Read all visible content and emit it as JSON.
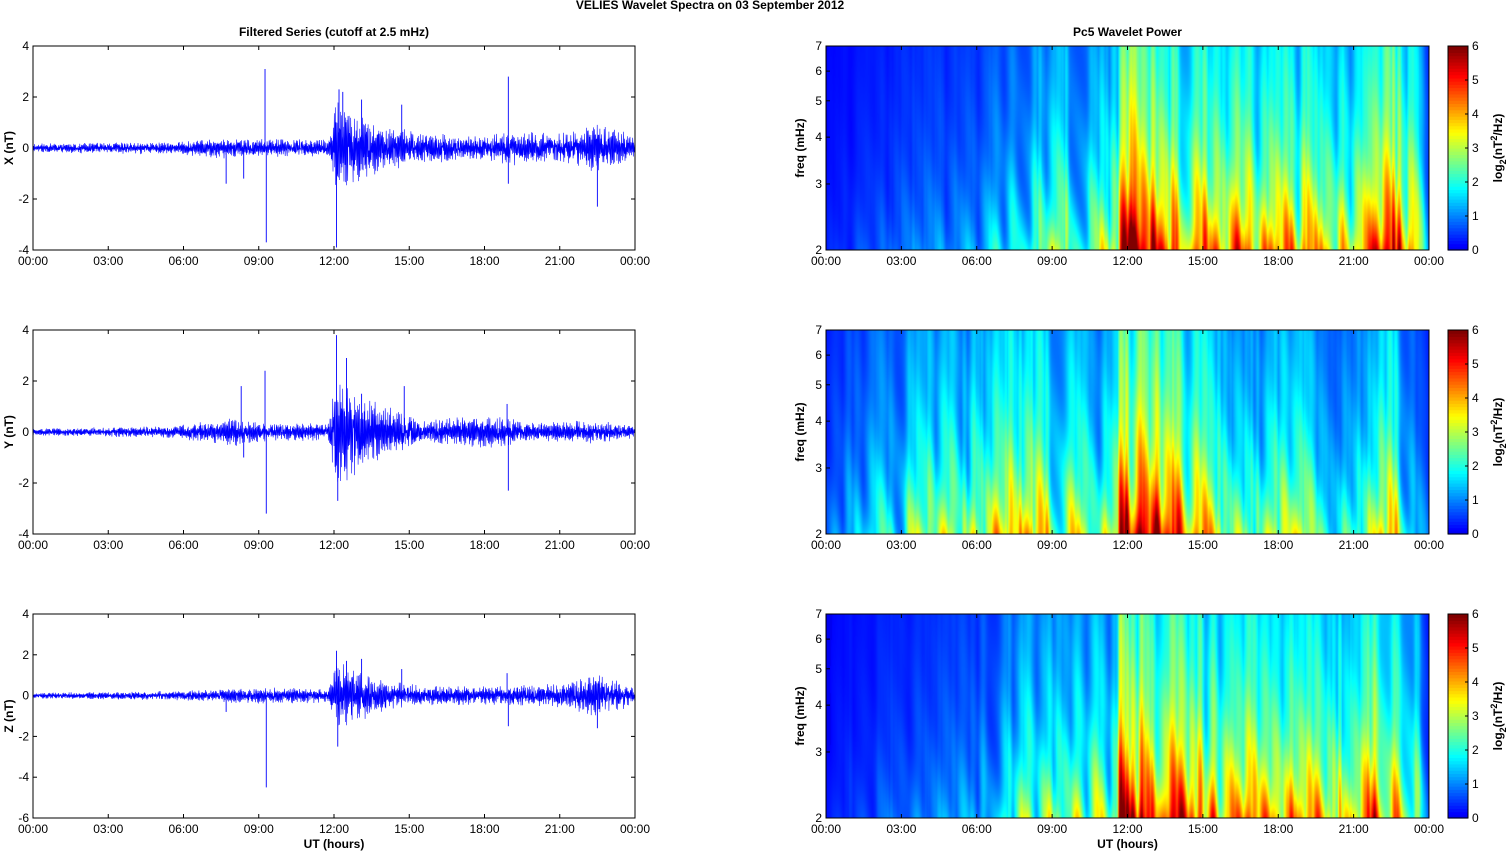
{
  "figure_title": "VELIES Wavelet Spectra on 03 September 2012",
  "chart_data": [
    {
      "type": "line",
      "panel": "left-top",
      "title": "Filtered Series (cutoff at 2.5 mHz)",
      "ylabel": "X (nT)",
      "xlabel": "",
      "xlim": [
        0,
        24
      ],
      "ylim": [
        -4,
        4
      ],
      "xticks": [
        "00:00",
        "03:00",
        "06:00",
        "09:00",
        "12:00",
        "15:00",
        "18:00",
        "21:00",
        "00:00"
      ],
      "yticks": [
        "-4",
        "-2",
        "0",
        "2",
        "4"
      ],
      "color": "#0000ff",
      "envelope": [
        [
          0,
          0.15
        ],
        [
          5.8,
          0.22
        ],
        [
          7.6,
          0.35
        ],
        [
          9.3,
          0.3
        ],
        [
          11.8,
          0.3
        ],
        [
          12.1,
          1.6
        ],
        [
          12.6,
          1.3
        ],
        [
          14.0,
          0.8
        ],
        [
          15.5,
          0.5
        ],
        [
          18.0,
          0.4
        ],
        [
          19.0,
          0.6
        ],
        [
          21.0,
          0.5
        ],
        [
          22.4,
          0.8
        ],
        [
          23.5,
          0.6
        ],
        [
          24,
          0.4
        ]
      ],
      "spikes": [
        [
          7.7,
          -1.4
        ],
        [
          8.4,
          -1.2
        ],
        [
          9.25,
          3.1
        ],
        [
          9.3,
          -3.7
        ],
        [
          12.1,
          -3.9
        ],
        [
          12.2,
          2.3
        ],
        [
          12.35,
          2.2
        ],
        [
          13.1,
          1.9
        ],
        [
          14.7,
          1.7
        ],
        [
          18.95,
          2.8
        ],
        [
          18.95,
          -1.4
        ],
        [
          22.5,
          -2.3
        ]
      ]
    },
    {
      "type": "line",
      "panel": "left-middle",
      "title": "",
      "ylabel": "Y (nT)",
      "xlabel": "",
      "xlim": [
        0,
        24
      ],
      "ylim": [
        -4,
        4
      ],
      "xticks": [
        "00:00",
        "03:00",
        "06:00",
        "09:00",
        "12:00",
        "15:00",
        "18:00",
        "21:00",
        "00:00"
      ],
      "yticks": [
        "-4",
        "-2",
        "0",
        "2",
        "4"
      ],
      "color": "#0000ff",
      "envelope": [
        [
          0,
          0.12
        ],
        [
          5.5,
          0.2
        ],
        [
          8.0,
          0.5
        ],
        [
          9.3,
          0.3
        ],
        [
          11.8,
          0.3
        ],
        [
          12.1,
          2.0
        ],
        [
          12.6,
          1.6
        ],
        [
          14.0,
          0.9
        ],
        [
          15.5,
          0.4
        ],
        [
          18.8,
          0.6
        ],
        [
          19.5,
          0.3
        ],
        [
          22.5,
          0.4
        ],
        [
          24,
          0.2
        ]
      ],
      "spikes": [
        [
          8.3,
          1.8
        ],
        [
          8.4,
          -1.0
        ],
        [
          9.25,
          2.4
        ],
        [
          9.3,
          -3.2
        ],
        [
          12.1,
          3.8
        ],
        [
          12.15,
          -2.7
        ],
        [
          12.5,
          2.9
        ],
        [
          13.1,
          1.5
        ],
        [
          14.8,
          1.8
        ],
        [
          18.9,
          1.1
        ],
        [
          18.95,
          -2.3
        ]
      ]
    },
    {
      "type": "line",
      "panel": "left-bottom",
      "title": "",
      "ylabel": "Z (nT)",
      "xlabel": "UT (hours)",
      "xlim": [
        0,
        24
      ],
      "ylim": [
        -6,
        4
      ],
      "xticks": [
        "00:00",
        "03:00",
        "06:00",
        "09:00",
        "12:00",
        "15:00",
        "18:00",
        "21:00",
        "00:00"
      ],
      "yticks": [
        "-6",
        "-4",
        "-2",
        "0",
        "2",
        "4"
      ],
      "color": "#0000ff",
      "envelope": [
        [
          0,
          0.12
        ],
        [
          6,
          0.2
        ],
        [
          9,
          0.35
        ],
        [
          11.8,
          0.3
        ],
        [
          12.1,
          1.6
        ],
        [
          12.6,
          1.2
        ],
        [
          14.0,
          0.7
        ],
        [
          15.5,
          0.4
        ],
        [
          18.5,
          0.4
        ],
        [
          21,
          0.5
        ],
        [
          22.4,
          0.9
        ],
        [
          23.5,
          0.6
        ],
        [
          24,
          0.3
        ]
      ],
      "spikes": [
        [
          7.7,
          -0.8
        ],
        [
          9.3,
          -4.5
        ],
        [
          12.1,
          2.2
        ],
        [
          12.15,
          -2.5
        ],
        [
          12.5,
          1.7
        ],
        [
          13.1,
          1.8
        ],
        [
          14.7,
          1.3
        ],
        [
          18.9,
          1.1
        ],
        [
          18.95,
          -1.5
        ],
        [
          22.5,
          -1.6
        ]
      ]
    },
    {
      "type": "heatmap",
      "panel": "right-top",
      "title": "Pc5 Wavelet Power",
      "ylabel": "freq (mHz)",
      "xlabel": "",
      "xlim": [
        0,
        24
      ],
      "ylim": [
        2,
        7
      ],
      "yscale": "log",
      "xticks": [
        "00:00",
        "03:00",
        "06:00",
        "09:00",
        "12:00",
        "15:00",
        "18:00",
        "21:00",
        "00:00"
      ],
      "yticks": [
        "2",
        "3",
        "4",
        "5",
        "6",
        "7"
      ],
      "colorbar_label": "log2(nT^2/Hz)",
      "colorbar_ticks": [
        "0",
        "1",
        "2",
        "3",
        "4",
        "5",
        "6"
      ],
      "colorscale": "jet",
      "clim": [
        0,
        6
      ],
      "activity": [
        [
          0,
          0.3
        ],
        [
          2.5,
          0.8
        ],
        [
          6.0,
          1.3
        ],
        [
          8.0,
          2.8
        ],
        [
          11.6,
          3.2
        ],
        [
          11.7,
          6.5
        ],
        [
          14.3,
          5.0
        ],
        [
          15.5,
          4.5
        ],
        [
          17.5,
          4.5
        ],
        [
          19.5,
          4.3
        ],
        [
          21.0,
          3.5
        ],
        [
          22.2,
          5.8
        ],
        [
          23.5,
          4.0
        ],
        [
          24,
          1.0
        ]
      ]
    },
    {
      "type": "heatmap",
      "panel": "right-middle",
      "title": "",
      "ylabel": "freq (mHz)",
      "xlabel": "",
      "xlim": [
        0,
        24
      ],
      "ylim": [
        2,
        7
      ],
      "yscale": "log",
      "xticks": [
        "00:00",
        "03:00",
        "06:00",
        "09:00",
        "12:00",
        "15:00",
        "18:00",
        "21:00",
        "00:00"
      ],
      "yticks": [
        "2",
        "3",
        "4",
        "5",
        "6",
        "7"
      ],
      "colorbar_label": "log2(nT^2/Hz)",
      "colorbar_ticks": [
        "0",
        "1",
        "2",
        "3",
        "4",
        "5",
        "6"
      ],
      "colorscale": "jet",
      "clim": [
        0,
        6
      ],
      "activity": [
        [
          0,
          1.0
        ],
        [
          2.2,
          2.2
        ],
        [
          4.2,
          3.0
        ],
        [
          6.5,
          3.4
        ],
        [
          8.1,
          4.4
        ],
        [
          10.5,
          3.0
        ],
        [
          11.6,
          3.2
        ],
        [
          11.7,
          6.5
        ],
        [
          14.5,
          4.8
        ],
        [
          16.0,
          2.8
        ],
        [
          17.5,
          2.6
        ],
        [
          18.5,
          4.0
        ],
        [
          20.0,
          1.8
        ],
        [
          21.5,
          2.5
        ],
        [
          22.5,
          4.4
        ],
        [
          23.5,
          1.5
        ],
        [
          24,
          0.8
        ]
      ]
    },
    {
      "type": "heatmap",
      "panel": "right-bottom",
      "title": "",
      "ylabel": "freq (mHz)",
      "xlabel": "UT (hours)",
      "xlim": [
        0,
        24
      ],
      "ylim": [
        2,
        7
      ],
      "yscale": "log",
      "xticks": [
        "00:00",
        "03:00",
        "06:00",
        "09:00",
        "12:00",
        "15:00",
        "18:00",
        "21:00",
        "00:00"
      ],
      "yticks": [
        "2",
        "3",
        "4",
        "5",
        "6",
        "7"
      ],
      "colorbar_label": "log2(nT^2/Hz)",
      "colorbar_ticks": [
        "0",
        "1",
        "2",
        "3",
        "4",
        "5",
        "6"
      ],
      "colorscale": "jet",
      "clim": [
        0,
        6
      ],
      "activity": [
        [
          0,
          0.3
        ],
        [
          2.5,
          0.8
        ],
        [
          6.0,
          1.3
        ],
        [
          8.0,
          2.8
        ],
        [
          11.6,
          3.2
        ],
        [
          11.7,
          6.5
        ],
        [
          14.3,
          5.0
        ],
        [
          15.5,
          4.5
        ],
        [
          17.5,
          4.5
        ],
        [
          19.5,
          4.3
        ],
        [
          21.0,
          3.5
        ],
        [
          22.2,
          5.8
        ],
        [
          23.5,
          4.0
        ],
        [
          24,
          1.0
        ]
      ]
    }
  ]
}
